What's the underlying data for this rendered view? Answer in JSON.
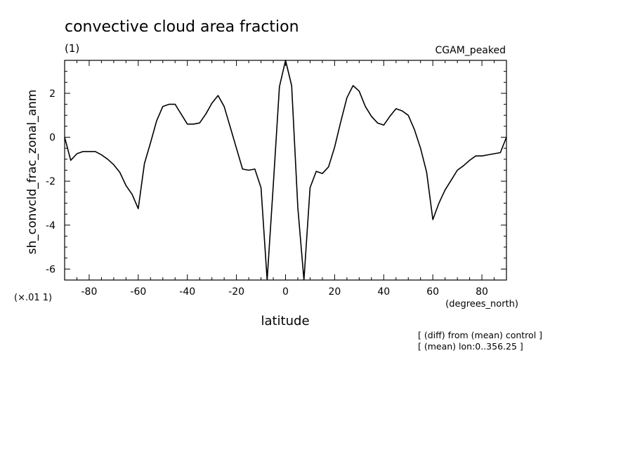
{
  "chart_data": {
    "type": "line",
    "title": "convective cloud area fraction",
    "subtitle": "(1)",
    "experiment": "CGAM_peaked",
    "xlabel": "latitude",
    "xunits": "(degrees_north)",
    "ylabel": "sh_convcld_frac_zonal_anm",
    "yscale_note": "(×.01 1)",
    "notes": [
      "[ (diff) from (mean) control ]",
      "[ (mean) lon:0..356.25 ]"
    ],
    "xlim": [
      -90,
      90
    ],
    "ylim": [
      -6.5,
      3.5
    ],
    "xticks": [
      -80,
      -60,
      -40,
      -20,
      0,
      20,
      40,
      60,
      80
    ],
    "yticks": [
      -6,
      -4,
      -2,
      0,
      2
    ],
    "xminor": 5,
    "yminor": 0.5,
    "grid": false,
    "series": [
      {
        "x": [
          -90,
          -87.5,
          -85,
          -82.5,
          -80,
          -77.5,
          -75,
          -72.5,
          -70,
          -67.5,
          -65,
          -62.5,
          -60,
          -57.5,
          -55,
          -52.5,
          -50,
          -47.5,
          -45,
          -42.5,
          -40,
          -37.5,
          -35,
          -32.5,
          -30,
          -27.5,
          -25,
          -22.5,
          -20,
          -17.5,
          -15,
          -12.5,
          -10,
          -7.5,
          -5,
          -2.5,
          0,
          2.5,
          5,
          7.5,
          10,
          12.5,
          15,
          17.5,
          20,
          22.5,
          25,
          27.5,
          30,
          32.5,
          35,
          37.5,
          40,
          42.5,
          45,
          47.5,
          50,
          52.5,
          55,
          57.5,
          60,
          62.5,
          65,
          67.5,
          70,
          72.5,
          75,
          77.5,
          80,
          82.5,
          85,
          87.5,
          90
        ],
        "y": [
          0,
          -1.05,
          -0.75,
          -0.65,
          -0.65,
          -0.65,
          -0.8,
          -1.0,
          -1.25,
          -1.6,
          -2.2,
          -2.6,
          -3.25,
          -1.2,
          -0.25,
          0.75,
          1.4,
          1.5,
          1.5,
          1.05,
          0.6,
          0.6,
          0.65,
          1.05,
          1.55,
          1.9,
          1.4,
          0.45,
          -0.5,
          -1.45,
          -1.5,
          -1.45,
          -2.3,
          -6.6,
          -2.2,
          2.3,
          3.5,
          2.35,
          -3.2,
          -6.5,
          -2.3,
          -1.55,
          -1.65,
          -1.35,
          -0.45,
          0.7,
          1.8,
          2.35,
          2.1,
          1.4,
          0.95,
          0.65,
          0.55,
          0.95,
          1.3,
          1.2,
          1.0,
          0.35,
          -0.5,
          -1.6,
          -3.75,
          -3.0,
          -2.4,
          -1.95,
          -1.5,
          -1.3,
          -1.05,
          -0.85,
          -0.85,
          -0.8,
          -0.75,
          -0.7,
          0
        ]
      }
    ]
  }
}
